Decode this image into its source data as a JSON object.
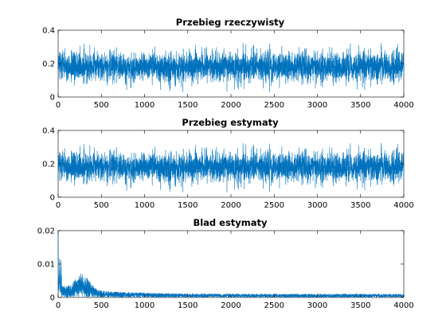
{
  "chart_data": [
    {
      "type": "line",
      "title": "Przebieg rzeczywisty",
      "xlabel": "",
      "ylabel": "",
      "xlim": [
        0,
        4000
      ],
      "ylim": [
        0,
        0.4
      ],
      "xticks": [
        0,
        500,
        1000,
        1500,
        2000,
        2500,
        3000,
        3500,
        4000
      ],
      "xtick_labels": [
        "0",
        "500",
        "1000",
        "1500",
        "2000",
        "2500",
        "3000",
        "3500",
        "4000"
      ],
      "yticks": [
        0,
        0.2,
        0.4
      ],
      "ytick_labels": [
        "0",
        "0.2",
        "0.4"
      ],
      "grid": false,
      "series": [
        {
          "color": "#0072BD",
          "n_points": 4000,
          "mean": 0.18,
          "min": 0.03,
          "max": 0.34,
          "x_range": [
            0,
            4000
          ]
        }
      ]
    },
    {
      "type": "line",
      "title": "Przebieg estymaty",
      "xlabel": "",
      "ylabel": "",
      "xlim": [
        0,
        4000
      ],
      "ylim": [
        0,
        0.4
      ],
      "xticks": [
        0,
        500,
        1000,
        1500,
        2000,
        2500,
        3000,
        3500,
        4000
      ],
      "xtick_labels": [
        "0",
        "500",
        "1000",
        "1500",
        "2000",
        "2500",
        "3000",
        "3500",
        "4000"
      ],
      "yticks": [
        0,
        0.2,
        0.4
      ],
      "ytick_labels": [
        "0",
        "0.2",
        "0.4"
      ],
      "grid": false,
      "series": [
        {
          "color": "#0072BD",
          "n_points": 4000,
          "mean": 0.18,
          "min": 0.03,
          "max": 0.34,
          "x_range": [
            0,
            4000
          ]
        }
      ]
    },
    {
      "type": "line",
      "title": "Blad estymaty",
      "xlabel": "",
      "ylabel": "",
      "xlim": [
        0,
        4000
      ],
      "ylim": [
        0,
        0.02
      ],
      "xticks": [
        0,
        500,
        1000,
        1500,
        2000,
        2500,
        3000,
        3500,
        4000
      ],
      "xtick_labels": [
        "0",
        "500",
        "1000",
        "1500",
        "2000",
        "2500",
        "3000",
        "3500",
        "4000"
      ],
      "yticks": [
        0,
        0.01,
        0.02
      ],
      "ytick_labels": [
        "0",
        "0.01",
        "0.02"
      ],
      "grid": false,
      "series": [
        {
          "color": "#0072BD",
          "n_points": 4000,
          "x_range": [
            0,
            4000
          ],
          "initial_peak": 0.02,
          "secondary_peak": 0.01,
          "secondary_peak_x": 25,
          "bump_peak": 0.0045,
          "bump_x": 280,
          "tail_level": 0.001
        }
      ]
    }
  ]
}
